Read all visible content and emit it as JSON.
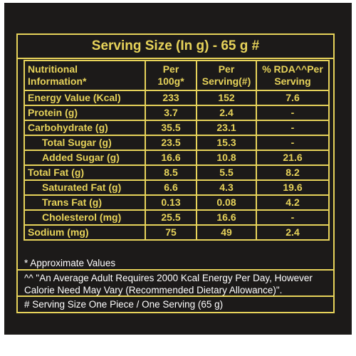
{
  "title": "Serving Size (In g) - 65 g #",
  "header": {
    "col1": "Nutritional Information*",
    "col2": "Per 100g*",
    "col3": "Per Serving(#)",
    "col4": "% RDA^^Per Serving"
  },
  "rows": [
    {
      "label": "Energy Value (Kcal)",
      "per100": "233",
      "perServing": "152",
      "rda": "7.6"
    },
    {
      "label": "Protein (g)",
      "per100": "3.7",
      "perServing": "2.4",
      "rda": "-"
    },
    {
      "label": "Carbohydrate (g)",
      "per100": "35.5",
      "perServing": "23.1",
      "rda": "-"
    },
    {
      "label": "Total Sugar (g)",
      "per100": "23.5",
      "perServing": "15.3",
      "rda": "-"
    },
    {
      "label": "Added Sugar (g)",
      "per100": "16.6",
      "perServing": "10.8",
      "rda": "21.6"
    },
    {
      "label": "Total Fat (g)",
      "per100": "8.5",
      "perServing": "5.5",
      "rda": "8.2"
    },
    {
      "label": "Saturated Fat (g)",
      "per100": "6.6",
      "perServing": "4.3",
      "rda": "19.6"
    },
    {
      "label": "Trans Fat (g)",
      "per100": "0.13",
      "perServing": "0.08",
      "rda": "4.2"
    },
    {
      "label": "Cholesterol (mg)",
      "per100": "25.5",
      "perServing": "16.6",
      "rda": "-"
    },
    {
      "label": "Sodium (mg)",
      "per100": "75",
      "perServing": "49",
      "rda": "2.4"
    }
  ],
  "footnotes": {
    "approx": "* Approximate Values",
    "rda_note": "^^ \"An Average Adult Requires 2000 Kcal Energy Per Day, However Calorie Need May Vary (Recommended Dietary Allowance)\".",
    "serving_note": "# Serving Size One Piece / One Serving (65 g)"
  },
  "colors": {
    "background": "#1c1a19",
    "accent": "#e7d35a",
    "footnote_text": "#ffffff"
  }
}
